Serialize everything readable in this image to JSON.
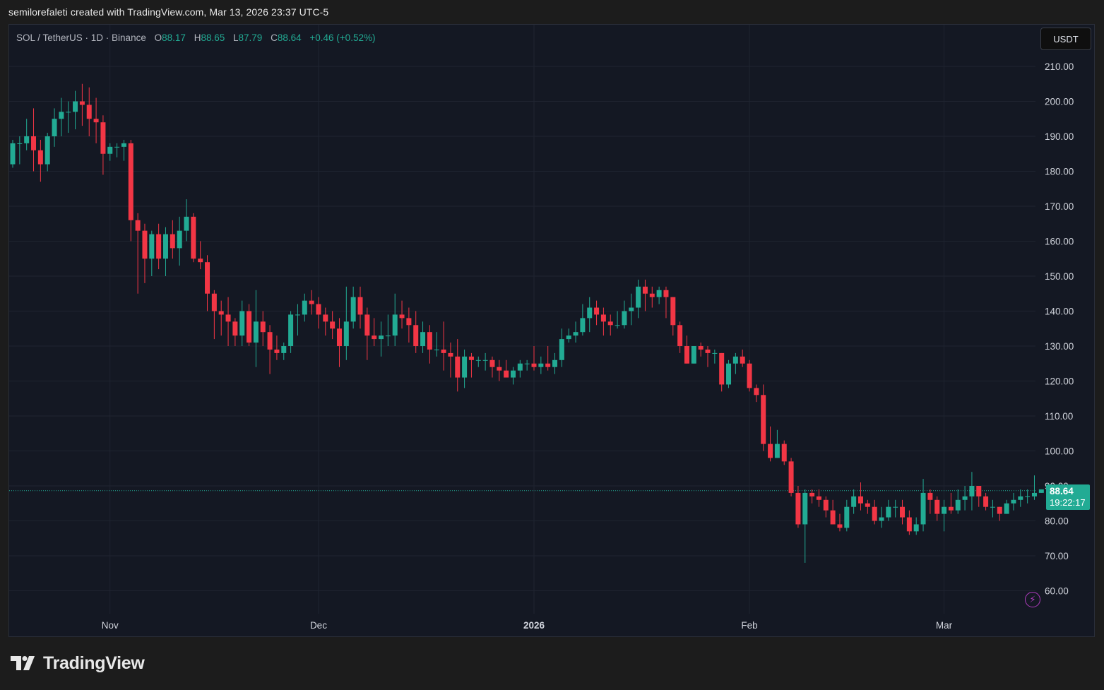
{
  "header": {
    "caption": "semilorefaleti created with TradingView.com, Mar 13, 2026 23:37 UTC-5"
  },
  "legend": {
    "symbol": "SOL / TetherUS · 1D · Binance",
    "o_label": "O",
    "o_value": "88.17",
    "h_label": "H",
    "h_value": "88.65",
    "l_label": "L",
    "l_value": "87.79",
    "c_label": "C",
    "c_value": "88.64",
    "change": "+0.46 (+0.52%)"
  },
  "currency": "USDT",
  "price_tag": {
    "price": "88.64",
    "countdown": "19:22:17"
  },
  "branding": {
    "logo_text": "TradingView"
  },
  "colors": {
    "up": "#22ab94",
    "down": "#f23645",
    "background": "#141823",
    "grid": "#1f2430"
  },
  "chart_data": {
    "type": "candlestick",
    "symbol": "SOL / TetherUS",
    "interval": "1D",
    "exchange": "Binance",
    "ylim": [
      60,
      210
    ],
    "y_ticks": [
      "210.00",
      "200.00",
      "190.00",
      "180.00",
      "170.00",
      "160.00",
      "150.00",
      "140.00",
      "130.00",
      "120.00",
      "110.00",
      "100.00",
      "90.00",
      "80.00",
      "70.00",
      "60.00"
    ],
    "x_ticks": [
      {
        "label": "Nov",
        "index": 14
      },
      {
        "label": "Dec",
        "index": 44
      },
      {
        "label": "2026",
        "index": 75
      },
      {
        "label": "Feb",
        "index": 106
      },
      {
        "label": "Mar",
        "index": 134
      }
    ],
    "last_price": 88.64,
    "grid": true,
    "ohlc": [
      [
        182,
        189,
        181,
        188
      ],
      [
        188,
        190,
        182,
        188
      ],
      [
        188,
        195,
        186,
        190
      ],
      [
        190,
        198,
        180,
        186
      ],
      [
        186,
        189,
        177,
        182
      ],
      [
        182,
        191,
        180,
        190
      ],
      [
        190,
        198,
        187,
        195
      ],
      [
        195,
        201,
        190,
        197
      ],
      [
        197,
        200,
        191,
        197
      ],
      [
        197,
        203,
        192,
        200
      ],
      [
        200,
        205,
        193,
        199
      ],
      [
        199,
        204,
        190,
        195
      ],
      [
        195,
        201,
        188,
        194
      ],
      [
        194,
        196,
        179,
        185
      ],
      [
        185,
        188,
        183,
        187
      ],
      [
        187,
        188,
        184,
        187
      ],
      [
        187,
        189,
        183,
        188
      ],
      [
        188,
        189,
        160,
        166
      ],
      [
        166,
        168,
        145,
        163
      ],
      [
        163,
        165,
        148,
        155
      ],
      [
        155,
        163,
        150,
        162
      ],
      [
        162,
        165,
        152,
        155
      ],
      [
        155,
        164,
        150,
        162
      ],
      [
        162,
        166,
        155,
        158
      ],
      [
        158,
        167,
        153,
        163
      ],
      [
        163,
        172,
        160,
        167
      ],
      [
        167,
        168,
        154,
        155
      ],
      [
        155,
        160,
        152,
        154
      ],
      [
        154,
        156,
        140,
        145
      ],
      [
        145,
        146,
        132,
        140
      ],
      [
        140,
        143,
        133,
        139
      ],
      [
        139,
        144,
        130,
        137
      ],
      [
        137,
        138,
        130,
        133
      ],
      [
        133,
        143,
        130,
        140
      ],
      [
        140,
        142,
        130,
        131
      ],
      [
        131,
        146,
        124,
        137
      ],
      [
        137,
        140,
        130,
        134
      ],
      [
        134,
        136,
        122,
        129
      ],
      [
        129,
        133,
        126,
        128
      ],
      [
        128,
        131,
        126,
        130
      ],
      [
        130,
        140,
        128,
        139
      ],
      [
        139,
        142,
        133,
        139
      ],
      [
        139,
        145,
        137,
        143
      ],
      [
        143,
        146,
        139,
        142
      ],
      [
        142,
        144,
        135,
        139
      ],
      [
        139,
        141,
        133,
        137
      ],
      [
        137,
        140,
        132,
        135
      ],
      [
        135,
        138,
        124,
        130
      ],
      [
        130,
        147,
        126,
        137
      ],
      [
        137,
        147,
        135,
        144
      ],
      [
        144,
        147,
        135,
        139
      ],
      [
        139,
        141,
        126,
        133
      ],
      [
        133,
        138,
        130,
        132
      ],
      [
        132,
        137,
        127,
        133
      ],
      [
        133,
        139,
        130,
        133
      ],
      [
        133,
        145,
        130,
        139
      ],
      [
        139,
        143,
        135,
        138
      ],
      [
        138,
        141,
        131,
        136
      ],
      [
        136,
        140,
        128,
        130
      ],
      [
        130,
        137,
        128,
        134
      ],
      [
        134,
        136,
        125,
        129
      ],
      [
        129,
        134,
        127,
        129
      ],
      [
        129,
        137,
        123,
        128
      ],
      [
        128,
        131,
        121,
        127
      ],
      [
        127,
        132,
        117,
        121
      ],
      [
        121,
        129,
        118,
        127
      ],
      [
        127,
        128,
        121,
        126
      ],
      [
        126,
        127,
        124,
        126
      ],
      [
        126,
        128,
        123,
        126
      ],
      [
        126,
        127,
        121,
        124
      ],
      [
        124,
        126,
        120,
        123
      ],
      [
        123,
        126,
        121,
        121
      ],
      [
        121,
        124,
        119,
        123
      ],
      [
        123,
        126,
        121,
        125
      ],
      [
        125,
        126,
        123,
        125
      ],
      [
        125,
        130,
        123,
        124
      ],
      [
        124,
        127,
        122,
        125
      ],
      [
        125,
        130,
        123,
        124
      ],
      [
        124,
        128,
        122,
        126
      ],
      [
        126,
        135,
        124,
        132
      ],
      [
        132,
        135,
        131,
        133
      ],
      [
        133,
        137,
        131,
        134
      ],
      [
        134,
        142,
        133,
        138
      ],
      [
        138,
        144,
        134,
        141
      ],
      [
        141,
        143,
        136,
        139
      ],
      [
        139,
        141,
        133,
        137
      ],
      [
        137,
        139,
        133,
        136
      ],
      [
        136,
        140,
        135,
        136
      ],
      [
        136,
        143,
        135,
        140
      ],
      [
        140,
        145,
        136,
        141
      ],
      [
        141,
        149,
        138,
        147
      ],
      [
        147,
        149,
        140,
        145
      ],
      [
        145,
        147,
        141,
        144
      ],
      [
        144,
        147,
        142,
        146
      ],
      [
        146,
        147,
        138,
        144
      ],
      [
        144,
        144,
        133,
        136
      ],
      [
        136,
        137,
        128,
        130
      ],
      [
        130,
        133,
        125,
        125
      ],
      [
        125,
        130,
        125,
        130
      ],
      [
        130,
        131,
        127,
        129
      ],
      [
        129,
        130,
        124,
        128
      ],
      [
        128,
        129,
        125,
        128
      ],
      [
        128,
        128,
        117,
        119
      ],
      [
        119,
        126,
        118,
        125
      ],
      [
        125,
        128,
        122,
        127
      ],
      [
        127,
        129,
        124,
        125
      ],
      [
        125,
        126,
        117,
        118
      ],
      [
        118,
        119,
        114,
        116
      ],
      [
        116,
        119,
        100,
        102
      ],
      [
        102,
        107,
        97,
        98
      ],
      [
        98,
        106,
        98,
        102
      ],
      [
        102,
        103,
        96,
        97
      ],
      [
        97,
        98,
        87,
        88
      ],
      [
        88,
        90,
        78,
        79
      ],
      [
        79,
        89,
        68,
        88
      ],
      [
        88,
        89,
        85,
        87
      ],
      [
        87,
        89,
        84,
        86
      ],
      [
        86,
        87,
        81,
        83
      ],
      [
        83,
        86,
        79,
        79
      ],
      [
        79,
        82,
        77,
        78
      ],
      [
        78,
        86,
        77,
        84
      ],
      [
        84,
        89,
        82,
        87
      ],
      [
        87,
        91,
        83,
        85
      ],
      [
        85,
        86,
        82,
        84
      ],
      [
        84,
        86,
        79,
        80
      ],
      [
        80,
        84,
        78,
        81
      ],
      [
        81,
        86,
        80,
        84
      ],
      [
        84,
        86,
        81,
        84
      ],
      [
        84,
        86,
        79,
        81
      ],
      [
        81,
        83,
        76,
        77
      ],
      [
        77,
        81,
        76,
        79
      ],
      [
        79,
        92,
        77,
        88
      ],
      [
        88,
        89,
        82,
        86
      ],
      [
        86,
        87,
        80,
        82
      ],
      [
        82,
        86,
        77,
        84
      ],
      [
        84,
        88,
        82,
        83
      ],
      [
        83,
        89,
        82,
        86
      ],
      [
        86,
        90,
        83,
        87
      ],
      [
        87,
        94,
        83,
        90
      ],
      [
        90,
        90,
        84,
        87
      ],
      [
        87,
        88,
        83,
        84
      ],
      [
        84,
        86,
        81,
        84
      ],
      [
        84,
        84,
        80,
        82
      ],
      [
        82,
        86,
        82,
        85
      ],
      [
        85,
        88,
        83,
        86
      ],
      [
        86,
        89,
        84,
        87
      ],
      [
        87,
        89,
        85,
        87
      ],
      [
        87,
        93,
        86,
        88
      ],
      [
        88,
        89,
        88,
        89
      ]
    ]
  }
}
